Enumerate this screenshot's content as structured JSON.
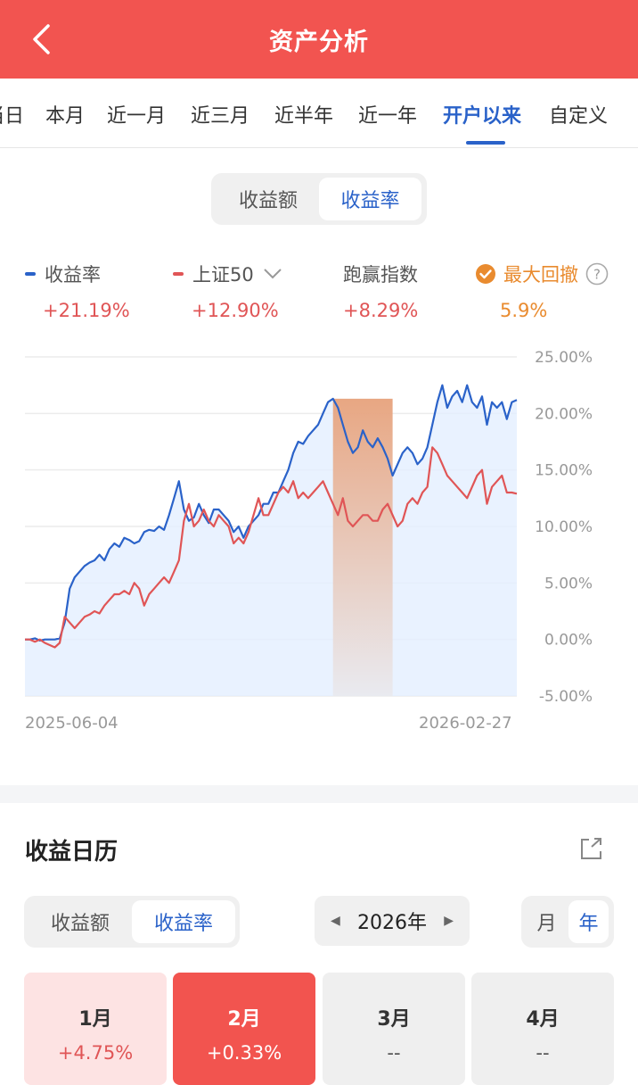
{
  "header": {
    "title": "资产分析",
    "back_icon": "chevron-left-icon"
  },
  "period_tabs": [
    {
      "label": "当日"
    },
    {
      "label": "本月"
    },
    {
      "label": "近一月"
    },
    {
      "label": "近三月"
    },
    {
      "label": "近半年"
    },
    {
      "label": "近一年"
    },
    {
      "label": "开户以来",
      "active": true
    },
    {
      "label": "自定义"
    }
  ],
  "metric_toggle": {
    "options": [
      "收益额",
      "收益率"
    ],
    "selected": "收益率"
  },
  "legend": {
    "return": {
      "label": "收益率",
      "value": "+21.19%",
      "color": "#2a62c9"
    },
    "index": {
      "label": "上证50",
      "value": "+12.90%",
      "color": "#e05556",
      "dropdown_icon": "chevron-down-icon"
    },
    "outperform": {
      "label": "跑赢指数",
      "value": "+8.29%"
    },
    "drawdown": {
      "label": "最大回撤",
      "value": "5.9%",
      "color": "#e98b2f",
      "check_icon": "check-circle-icon",
      "help_icon": "question-circle-icon"
    }
  },
  "chart_data": {
    "type": "line",
    "x_start": "2025-06-04",
    "x_end": "2026-02-27",
    "y_ticks": [
      "25.00%",
      "20.00%",
      "15.00%",
      "10.00%",
      "5.00%",
      "0.00%",
      "-5.00%"
    ],
    "ylim": [
      -5,
      25
    ],
    "series": [
      {
        "name": "收益率",
        "color": "#2a62c9",
        "values": [
          0,
          0,
          0.1,
          -0.1,
          0,
          0,
          0,
          0.1,
          1.5,
          4.5,
          5.5,
          6.0,
          6.5,
          6.8,
          7.0,
          7.5,
          7.0,
          8.0,
          8.5,
          8.2,
          9.0,
          8.8,
          8.5,
          8.7,
          9.5,
          9.7,
          9.6,
          10.0,
          9.7,
          11.0,
          12.5,
          14.0,
          11.5,
          10.5,
          10.8,
          12.0,
          11.0,
          10.3,
          11.5,
          11.5,
          11.0,
          10.5,
          9.5,
          10.0,
          9.0,
          10.0,
          10.5,
          11.0,
          12.0,
          12.0,
          13.0,
          13.0,
          14.0,
          15.0,
          16.5,
          17.5,
          17.3,
          18.0,
          18.5,
          19.0,
          20.0,
          21.0,
          21.3,
          20.5,
          19.0,
          17.5,
          16.5,
          17.0,
          18.5,
          17.5,
          17.0,
          17.8,
          17.0,
          16.0,
          14.5,
          15.5,
          16.5,
          17.0,
          16.5,
          15.5,
          16.0,
          17.0,
          19.0,
          21.0,
          22.5,
          20.5,
          21.5,
          22.0,
          21.0,
          22.5,
          21.0,
          20.5,
          21.5,
          19.0,
          21.0,
          20.5,
          21.0,
          19.5,
          21.0,
          21.19
        ]
      },
      {
        "name": "上证50",
        "color": "#e05556",
        "values": [
          0,
          0,
          -0.2,
          0,
          -0.3,
          -0.5,
          -0.7,
          -0.3,
          2.0,
          1.5,
          1.0,
          1.5,
          2.0,
          2.2,
          2.5,
          2.3,
          3.0,
          3.5,
          4.0,
          4.0,
          4.3,
          4.0,
          5.0,
          4.5,
          3.0,
          4.0,
          4.5,
          5.0,
          5.5,
          5.0,
          6.0,
          7.0,
          10.5,
          12.0,
          10.0,
          10.5,
          11.5,
          10.5,
          10.0,
          11.0,
          10.5,
          10.0,
          8.5,
          9.0,
          8.5,
          9.5,
          11.0,
          12.5,
          11.0,
          11.0,
          12.0,
          13.0,
          13.5,
          13.0,
          14.0,
          12.5,
          13.0,
          12.5,
          13.0,
          13.5,
          14.0,
          13.0,
          12.0,
          11.0,
          12.5,
          10.5,
          10.0,
          10.5,
          11.0,
          11.0,
          10.5,
          10.5,
          11.5,
          12.0,
          11.0,
          10.0,
          10.5,
          12.0,
          12.5,
          12.0,
          13.0,
          13.5,
          17.0,
          16.5,
          15.5,
          14.5,
          14.0,
          13.5,
          13.0,
          12.5,
          13.5,
          14.5,
          15.0,
          12.0,
          13.5,
          14.0,
          14.5,
          13.0,
          13.0,
          12.9
        ]
      }
    ],
    "drawdown_range": {
      "from_index": 62,
      "to_index": 74
    }
  },
  "calendar": {
    "title": "收益日历",
    "share_icon": "share-icon",
    "type_toggle": {
      "options": [
        "收益额",
        "收益率"
      ],
      "selected": "收益率"
    },
    "year": {
      "label": "2026年",
      "prev_icon": "triangle-left-icon",
      "next_icon": "triangle-right-icon"
    },
    "granularity": {
      "options": [
        "月",
        "年"
      ],
      "selected": "年"
    },
    "months": [
      {
        "month": "1月",
        "value": "+4.75%",
        "bg": "#fde3e3",
        "fg": "#333",
        "val_color": "#e05556"
      },
      {
        "month": "2月",
        "value": "+0.33%",
        "bg": "#f2544f",
        "fg": "#ffffff",
        "val_color": "#ffffff"
      },
      {
        "month": "3月",
        "value": "--",
        "bg": "#efefef",
        "fg": "#333",
        "val_color": "#555"
      },
      {
        "month": "4月",
        "value": "--",
        "bg": "#efefef",
        "fg": "#333",
        "val_color": "#555"
      }
    ]
  }
}
